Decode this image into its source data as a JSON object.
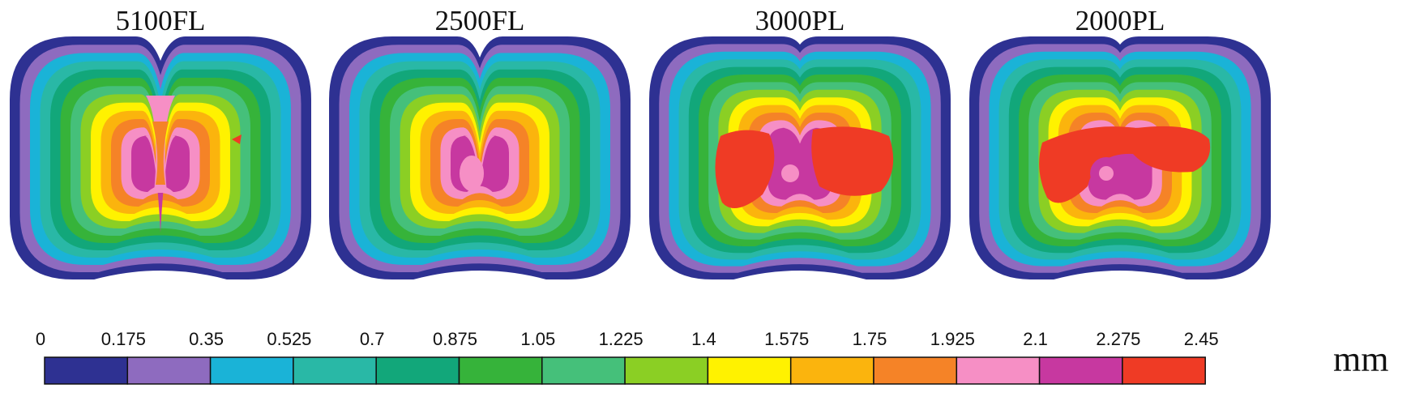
{
  "panels": [
    {
      "title": "5100FL",
      "variant": "fl_split"
    },
    {
      "title": "2500FL",
      "variant": "fl_hole"
    },
    {
      "title": "3000PL",
      "variant": "pl_sep"
    },
    {
      "title": "2000PL",
      "variant": "pl_joined"
    }
  ],
  "colorbar": {
    "ticks": [
      "0",
      "0.175",
      "0.35",
      "0.525",
      "0.7",
      "0.875",
      "1.05",
      "1.225",
      "1.4",
      "1.575",
      "1.75",
      "1.925",
      "2.1",
      "2.275",
      "2.45"
    ],
    "colors": [
      "#2e3192",
      "#8e6bbf",
      "#1ab3d7",
      "#29b8a6",
      "#12a77a",
      "#36b33a",
      "#45c07a",
      "#8bcf24",
      "#fff200",
      "#fbb40d",
      "#f58327",
      "#f68fc5",
      "#c738a0",
      "#ef3b25"
    ],
    "unit": "mm"
  }
}
